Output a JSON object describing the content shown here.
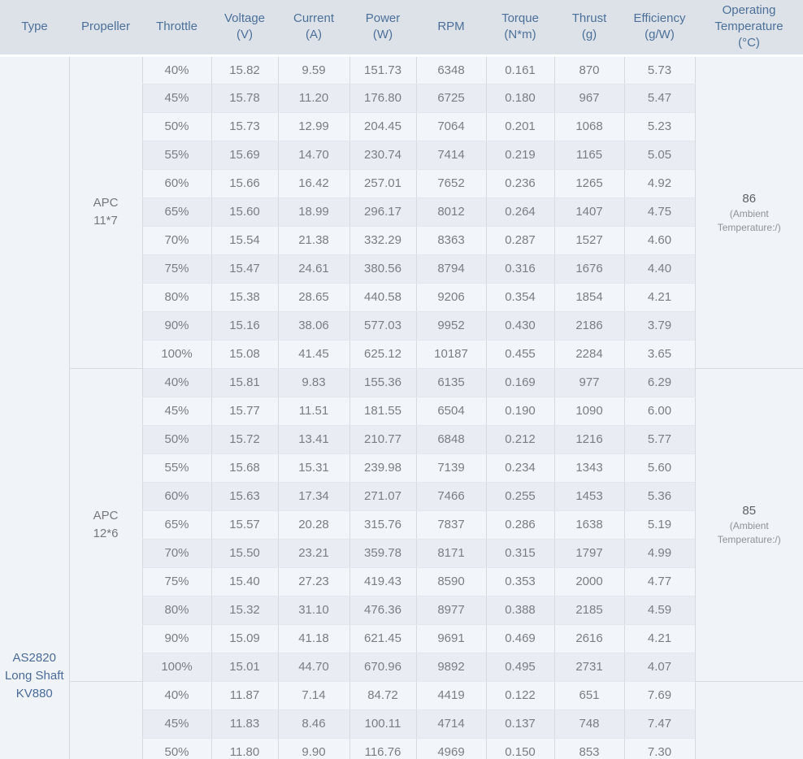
{
  "table": {
    "headers": [
      {
        "label": "Type",
        "unit": ""
      },
      {
        "label": "Propeller",
        "unit": ""
      },
      {
        "label": "Throttle",
        "unit": ""
      },
      {
        "label": "Voltage",
        "unit": "(V)"
      },
      {
        "label": "Current",
        "unit": "(A)"
      },
      {
        "label": "Power",
        "unit": "(W)"
      },
      {
        "label": "RPM",
        "unit": ""
      },
      {
        "label": "Torque",
        "unit": "(N*m)"
      },
      {
        "label": "Thrust",
        "unit": "(g)"
      },
      {
        "label": "Efficiency",
        "unit": "(g/W)"
      },
      {
        "label": "Operating Temperature",
        "unit": "(°C)"
      }
    ],
    "type_label": "AS2820 Long Shaft KV880",
    "sections": [
      {
        "propeller": "APC 11*7",
        "temperature": "86",
        "temperature_note": "(Ambient Temperature:/)",
        "rows": [
          [
            "40%",
            "15.82",
            "9.59",
            "151.73",
            "6348",
            "0.161",
            "870",
            "5.73"
          ],
          [
            "45%",
            "15.78",
            "11.20",
            "176.80",
            "6725",
            "0.180",
            "967",
            "5.47"
          ],
          [
            "50%",
            "15.73",
            "12.99",
            "204.45",
            "7064",
            "0.201",
            "1068",
            "5.23"
          ],
          [
            "55%",
            "15.69",
            "14.70",
            "230.74",
            "7414",
            "0.219",
            "1165",
            "5.05"
          ],
          [
            "60%",
            "15.66",
            "16.42",
            "257.01",
            "7652",
            "0.236",
            "1265",
            "4.92"
          ],
          [
            "65%",
            "15.60",
            "18.99",
            "296.17",
            "8012",
            "0.264",
            "1407",
            "4.75"
          ],
          [
            "70%",
            "15.54",
            "21.38",
            "332.29",
            "8363",
            "0.287",
            "1527",
            "4.60"
          ],
          [
            "75%",
            "15.47",
            "24.61",
            "380.56",
            "8794",
            "0.316",
            "1676",
            "4.40"
          ],
          [
            "80%",
            "15.38",
            "28.65",
            "440.58",
            "9206",
            "0.354",
            "1854",
            "4.21"
          ],
          [
            "90%",
            "15.16",
            "38.06",
            "577.03",
            "9952",
            "0.430",
            "2186",
            "3.79"
          ],
          [
            "100%",
            "15.08",
            "41.45",
            "625.12",
            "10187",
            "0.455",
            "2284",
            "3.65"
          ]
        ]
      },
      {
        "propeller": "APC 12*6",
        "temperature": "85",
        "temperature_note": "(Ambient Temperature:/)",
        "rows": [
          [
            "40%",
            "15.81",
            "9.83",
            "155.36",
            "6135",
            "0.169",
            "977",
            "6.29"
          ],
          [
            "45%",
            "15.77",
            "11.51",
            "181.55",
            "6504",
            "0.190",
            "1090",
            "6.00"
          ],
          [
            "50%",
            "15.72",
            "13.41",
            "210.77",
            "6848",
            "0.212",
            "1216",
            "5.77"
          ],
          [
            "55%",
            "15.68",
            "15.31",
            "239.98",
            "7139",
            "0.234",
            "1343",
            "5.60"
          ],
          [
            "60%",
            "15.63",
            "17.34",
            "271.07",
            "7466",
            "0.255",
            "1453",
            "5.36"
          ],
          [
            "65%",
            "15.57",
            "20.28",
            "315.76",
            "7837",
            "0.286",
            "1638",
            "5.19"
          ],
          [
            "70%",
            "15.50",
            "23.21",
            "359.78",
            "8171",
            "0.315",
            "1797",
            "4.99"
          ],
          [
            "75%",
            "15.40",
            "27.23",
            "419.43",
            "8590",
            "0.353",
            "2000",
            "4.77"
          ],
          [
            "80%",
            "15.32",
            "31.10",
            "476.36",
            "8977",
            "0.388",
            "2185",
            "4.59"
          ],
          [
            "90%",
            "15.09",
            "41.18",
            "621.45",
            "9691",
            "0.469",
            "2616",
            "4.21"
          ],
          [
            "100%",
            "15.01",
            "44.70",
            "670.96",
            "9892",
            "0.495",
            "2731",
            "4.07"
          ]
        ]
      },
      {
        "propeller": "",
        "temperature": "",
        "temperature_note": "",
        "rows": [
          [
            "40%",
            "11.87",
            "7.14",
            "84.72",
            "4419",
            "0.122",
            "651",
            "7.69"
          ],
          [
            "45%",
            "11.83",
            "8.46",
            "100.11",
            "4714",
            "0.137",
            "748",
            "7.47"
          ],
          [
            "50%",
            "11.80",
            "9.90",
            "116.76",
            "4969",
            "0.150",
            "853",
            "7.30"
          ]
        ]
      }
    ]
  }
}
